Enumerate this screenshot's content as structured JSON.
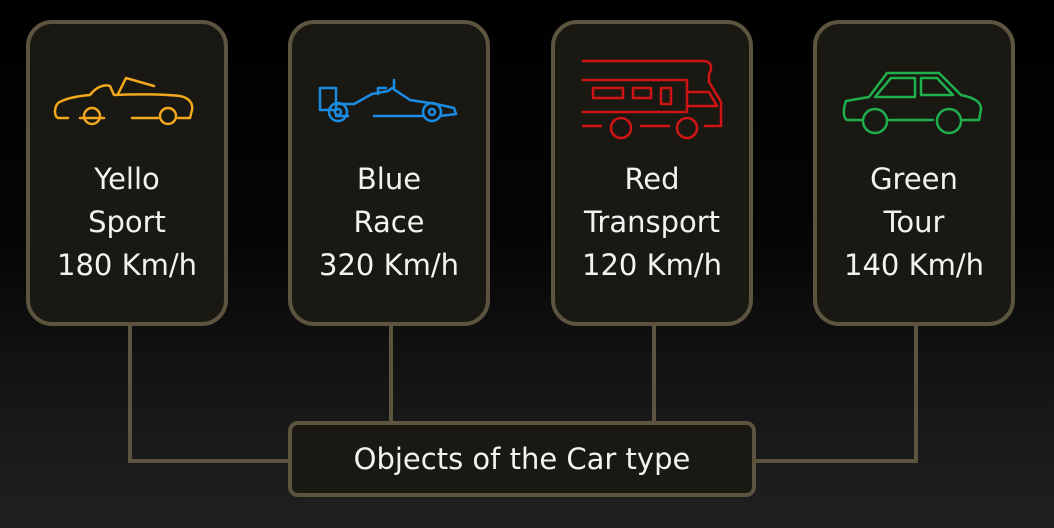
{
  "colors": {
    "sport": "#f2a81d",
    "race": "#1b8ce3",
    "transport": "#d01414",
    "tour": "#1fb04c",
    "border": "#5d5440"
  },
  "objects": [
    {
      "icon": "convertible-car-icon",
      "color_key": "sport",
      "line1": "Yello",
      "line2": "Sport",
      "speed": "180 Km/h"
    },
    {
      "icon": "race-car-icon",
      "color_key": "race",
      "line1": "Blue",
      "line2": "Race",
      "speed": "320 Km/h"
    },
    {
      "icon": "camper-van-icon",
      "color_key": "transport",
      "line1": "Red",
      "line2": "Transport",
      "speed": "120 Km/h"
    },
    {
      "icon": "hatchback-car-icon",
      "color_key": "tour",
      "line1": "Green",
      "line2": "Tour",
      "speed": "140 Km/h"
    }
  ],
  "group_label": "Objects of the Car type"
}
